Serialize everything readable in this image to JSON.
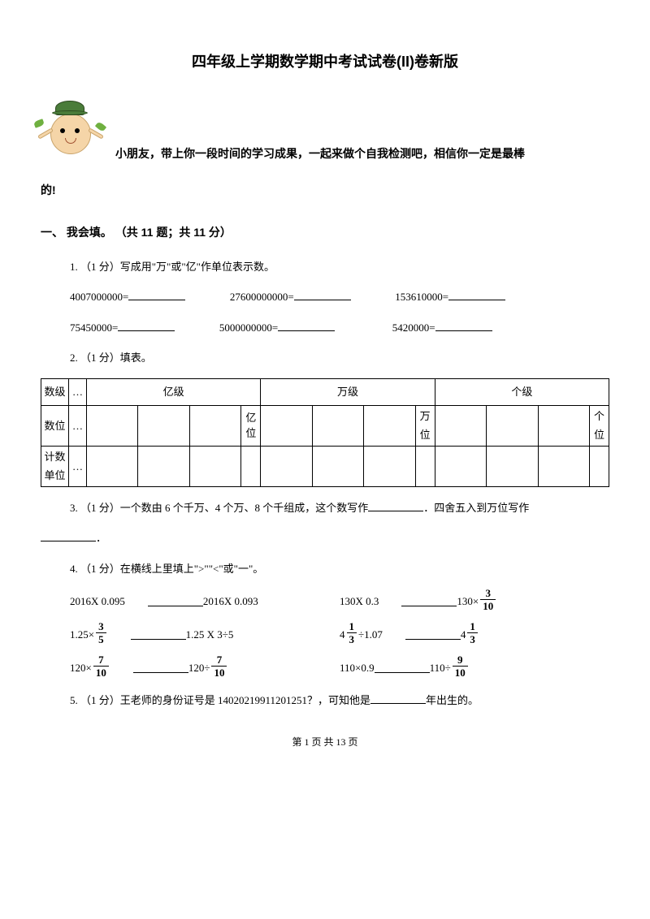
{
  "title": "四年级上学期数学期中考试试卷(II)卷新版",
  "intro_line1": "小朋友，带上你一段时间的学习成果，一起来做个自我检测吧，相信你一定是最棒",
  "intro_line2": "的!",
  "section1": {
    "heading": "一、 我会填。 （共 11 题；共 11 分）",
    "q1": {
      "stem": "1.  （1 分）写成用\"万\"或\"亿\"作单位表示数。",
      "r1a": "4007000000=",
      "r1b": "27600000000=",
      "r1c": "153610000=",
      "r2a": "75450000=",
      "r2b": "5000000000=",
      "r2c": "5420000="
    },
    "q2": {
      "stem": "2.  （1 分）填表。",
      "t_level": "数级",
      "t_pos": "数位",
      "t_unit": "计数单位",
      "t_dots": "…",
      "lvl_yi": "亿级",
      "lvl_wan": "万级",
      "lvl_ge": "个级",
      "pos_yi": "亿位",
      "pos_wan": "万位",
      "pos_ge": "个位"
    },
    "q3": {
      "pre": "3.   （1 分）一个数由 6 个千万、4 个万、8 个千组成，这个数写作",
      "mid": "．四舍五入到万位写作",
      "post": "．"
    },
    "q4": {
      "stem": "4.  （1 分）在横线上里填上\">\"\"<\"或\"一\"。",
      "e1l_a": "2016X 0.095",
      "e1l_b": " 2016X 0.093",
      "e1r_a": "130X 0.3",
      "e1r_b": "130×",
      "e2l_a": "1.25×",
      "e2l_b": "1.25 X 3÷5",
      "e2r_a": "4",
      "e2r_b": "÷1.07",
      "e2r_c": "4",
      "e3l_a": "120×",
      "e3l_b": "120÷",
      "e3r_a": "110×0.9",
      "e3r_b": "110÷",
      "f_3_10_n": "3",
      "f_3_10_d": "10",
      "f_3_5_n": "3",
      "f_3_5_d": "5",
      "f_1_3_n": "1",
      "f_1_3_d": "3",
      "f_7_10_n": "7",
      "f_7_10_d": "10",
      "f_9_10_n": "9",
      "f_9_10_d": "10"
    },
    "q5": {
      "pre": "5.  （1 分）王老师的身份证号是 14020219911201251？，可知他是",
      "post": "年出生的。"
    }
  },
  "footer": "第 1 页 共 13 页"
}
